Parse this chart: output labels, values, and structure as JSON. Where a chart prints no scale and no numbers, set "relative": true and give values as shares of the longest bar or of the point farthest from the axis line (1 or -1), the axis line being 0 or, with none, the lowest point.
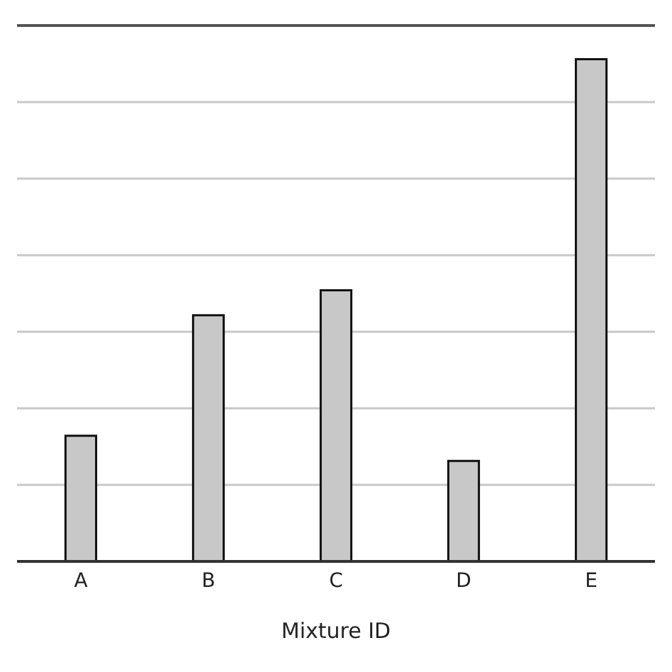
{
  "chart_data": {
    "type": "bar",
    "relative": true,
    "xlabel": "Mixture ID",
    "categories": [
      "A",
      "B",
      "C",
      "D",
      "E"
    ],
    "values": [
      0.25,
      0.49,
      0.54,
      0.2,
      1
    ],
    "color": "#c8c8c8",
    "grid": "y"
  }
}
